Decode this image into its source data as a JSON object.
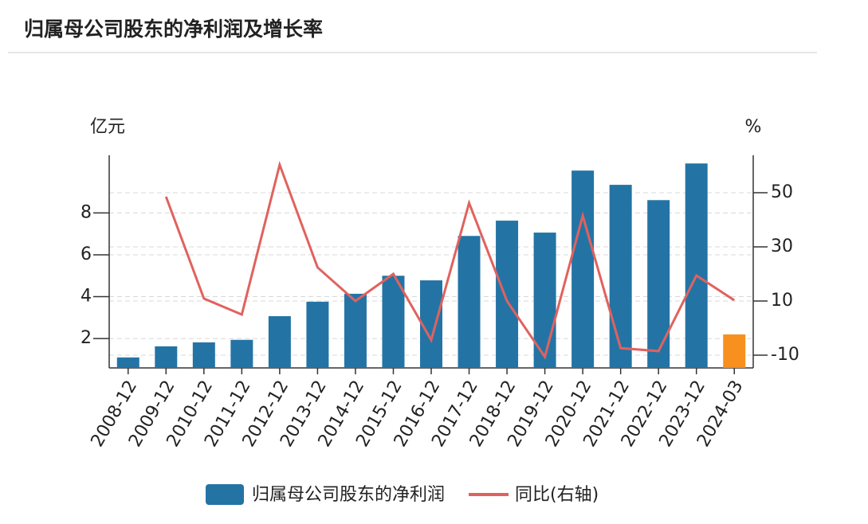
{
  "chart_data": {
    "type": "bar-line",
    "title": "归属母公司股东的净利润及增长率",
    "y_label": "亿元",
    "y2_label": "%",
    "categories": [
      "2008-12",
      "2009-12",
      "2010-12",
      "2011-12",
      "2012-12",
      "2013-12",
      "2014-12",
      "2015-12",
      "2016-12",
      "2017-12",
      "2018-12",
      "2019-12",
      "2020-12",
      "2021-12",
      "2022-12",
      "2023-12",
      "2024-03"
    ],
    "series": [
      {
        "name": "归属母公司股东的净利润",
        "type": "bar",
        "color": "#2374a5",
        "colors": [
          "#2374a5",
          "#2374a5",
          "#2374a5",
          "#2374a5",
          "#2374a5",
          "#2374a5",
          "#2374a5",
          "#2374a5",
          "#2374a5",
          "#2374a5",
          "#2374a5",
          "#2374a5",
          "#2374a5",
          "#2374a5",
          "#2374a5",
          "#2374a5",
          "#f7901e"
        ],
        "values": [
          1.1,
          1.63,
          1.82,
          1.94,
          3.07,
          3.76,
          4.14,
          5.0,
          4.78,
          6.9,
          7.63,
          7.06,
          10.02,
          9.34,
          8.61,
          10.36,
          2.2
        ]
      },
      {
        "name": "同比(右轴)",
        "type": "line",
        "axis": "y2",
        "color": "#e0625e",
        "values": [
          null,
          48.5,
          10.9,
          5,
          60.3,
          22.4,
          10,
          20,
          -4.4,
          46.2,
          10,
          -10.6,
          41.5,
          -7.4,
          -8.5,
          19.4,
          10.3
        ]
      }
    ],
    "ylim": [
      0.6,
      10.75
    ],
    "yticks": [
      2,
      4,
      6,
      8
    ],
    "y2lim": [
      -14.7,
      63.8
    ],
    "y2ticks": [
      -10,
      10,
      30,
      50
    ],
    "grid": true
  }
}
